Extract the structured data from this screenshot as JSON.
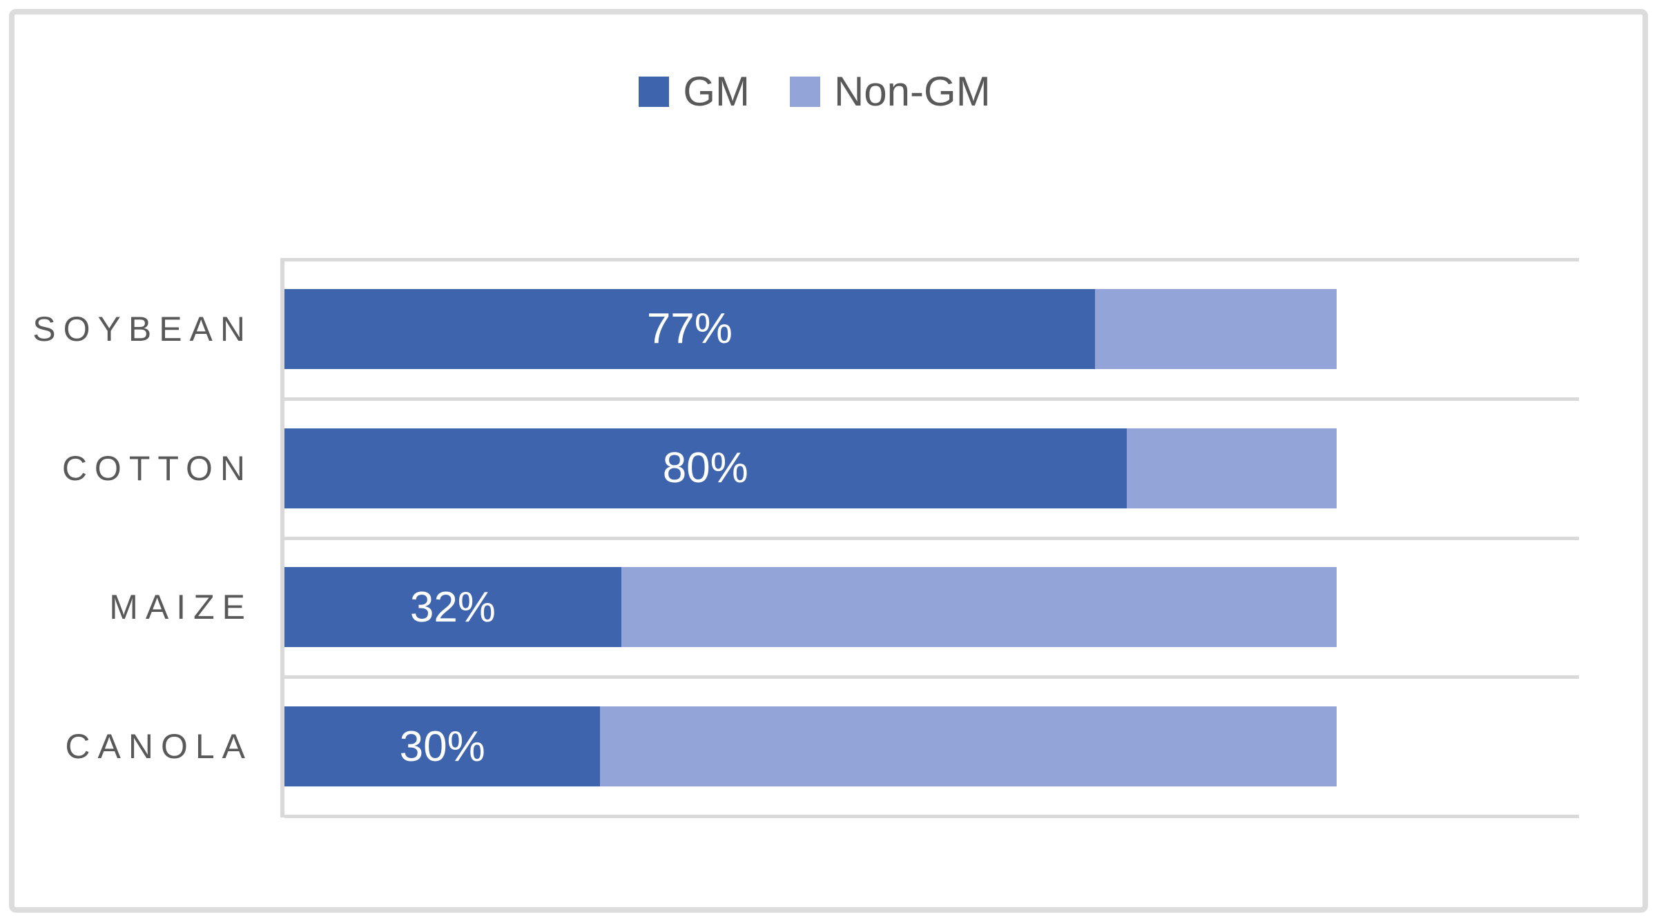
{
  "legend": {
    "items": [
      {
        "label": "GM",
        "color": "#3E64AD"
      },
      {
        "label": "Non-GM",
        "color": "#92A4D8"
      }
    ]
  },
  "chart_data": {
    "type": "bar",
    "orientation": "horizontal",
    "stacked": true,
    "title": "",
    "xlabel": "",
    "ylabel": "",
    "categories": [
      "SOYBEAN",
      "COTTON",
      "MAIZE",
      "CANOLA"
    ],
    "series": [
      {
        "name": "GM",
        "values": [
          77,
          80,
          32,
          30
        ]
      },
      {
        "name": "Non-GM",
        "values": [
          23,
          20,
          68,
          70
        ]
      }
    ],
    "value_labels": [
      "77%",
      "80%",
      "32%",
      "30%"
    ],
    "value_labels_on_series": "GM",
    "bar_total_percent": 100,
    "xlim": [
      0,
      123
    ],
    "grid": true,
    "gridline_color": "#D9D9D9",
    "text_color": "#595959",
    "value_label_color": "#ffffff",
    "colors": {
      "GM": "#3E64AD",
      "Non-GM": "#92A4D8"
    },
    "legend_position": "top-center"
  }
}
